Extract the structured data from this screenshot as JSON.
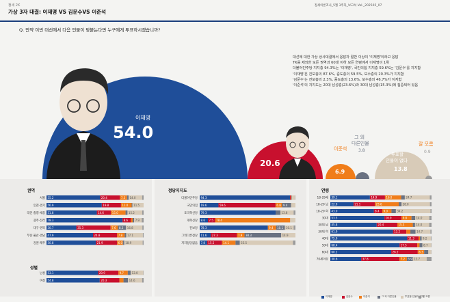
{
  "header": {
    "section_label": "정세 2K",
    "title": "가상 3자 대결: 이재명 VS 김문수VS 이준석",
    "magazine": "정세이론조사_5월 3주차_보고서   Vol._202505_07"
  },
  "question": "Q. 만약 이번 대선에서 다음 인물이 맞붙는다면 누구에게 투표하시겠습니까?",
  "description": [
    "대선에 대한 가상 상사대결에서 응답자 절반 이상이 '이재명'이라고 응답",
    "TK를 제외한 모든 권역과 60대 이하 모든 연령에서 이재명이 1위",
    "더불어민주당 지지층 94.3%는 '이재명', 국민의힘 지지층 59.6%는 '김문수'를 지지함",
    "'이재명'은 진보층의 87.6%, 중도층의 59.5%, 보수층의 20.3%가 지지함",
    "'김문수'는 진보층의 2.3%, 중도층의 13.6%, 보수층의 46.7%가 지지함",
    "'이준석'의 지지도는 20대 남성층(23.6%)과 30대 남성층(15.3%)에 집중되어 있음"
  ],
  "colors": {
    "lee": "#1f4e99",
    "kim": "#c8102e",
    "jun": "#f07d1a",
    "other": "#6a7282",
    "none": "#d8cbb8",
    "dk": "#9a9a9a"
  },
  "chart_data": [
    {
      "type": "bar",
      "title": "가상 3자 대결 전체",
      "categories": [
        "이재명",
        "김문수",
        "이준석",
        "그 외 다른인물",
        "투표할 인물이 없다",
        "잘 모름"
      ],
      "values": [
        54.0,
        20.6,
        6.9,
        3.8,
        13.8,
        0.9
      ],
      "labels": {
        "lee": "54.0",
        "kim": "20.6",
        "jun": "6.9",
        "other": "3.8",
        "none": "13.8",
        "dk": "0.9"
      }
    },
    {
      "type": "bar",
      "stacked": true,
      "title": "권역",
      "categories": [
        "서울",
        "인천·경기",
        "대전·충청·세종",
        "광주·전라",
        "대구·경북",
        "부산·울산·경남",
        "강원·제주"
      ],
      "series": [
        {
          "name": "이재명",
          "values": [
            55.2,
            56.9,
            51.8,
            78.3,
            30.7,
            47.9,
            50.8
          ]
        },
        {
          "name": "김문수",
          "values": [
            20.4,
            19.8,
            14.6,
            8.6,
            35.3,
            24.8,
            21.9
          ]
        },
        {
          "name": "이준석",
          "values": [
            7.3,
            11.0,
            15.0,
            1.8,
            7.6,
            7.8,
            6.0
          ]
        },
        {
          "name": "그 외 다른인물",
          "values": [
            1.6,
            0.8,
            2.0,
            1.5,
            8.3,
            1.6,
            1.4
          ]
        },
        {
          "name": "투표할 인물이 없다",
          "values": [
            14.0,
            11.5,
            15.2,
            7.9,
            16.8,
            17.1,
            18.9
          ]
        },
        {
          "name": "잘 모름",
          "values": [
            1.5,
            0.0,
            1.4,
            1.9,
            1.3,
            0.8,
            1.0
          ]
        }
      ]
    },
    {
      "type": "bar",
      "stacked": true,
      "title": "성별",
      "categories": [
        "남성",
        "여성"
      ],
      "series": [
        {
          "name": "이재명",
          "values": [
            53.1,
            54.8
          ]
        },
        {
          "name": "김문수",
          "values": [
            20.9,
            20.3
          ]
        },
        {
          "name": "이준석",
          "values": [
            9.7,
            4.2
          ]
        },
        {
          "name": "그 외 다른인물",
          "values": [
            3.0,
            4.6
          ]
        },
        {
          "name": "투표할 인물이 없다",
          "values": [
            13.0,
            14.6
          ]
        },
        {
          "name": "잘 모름",
          "values": [
            0.3,
            1.5
          ]
        }
      ]
    },
    {
      "type": "bar",
      "stacked": true,
      "title": "정당지지도",
      "categories": [
        "더불어민주당",
        "국민의힘",
        "조국혁신당",
        "개혁신당",
        "진보당",
        "그외다른정당",
        "지지정당없음"
      ],
      "series": [
        {
          "name": "이재명",
          "values": [
            94.3,
            19.6,
            79.3,
            8.6,
            78.3,
            11.6,
            7.8
          ]
        },
        {
          "name": "김문수",
          "values": [
            0.7,
            59.6,
            0.0,
            7.5,
            0.0,
            27.3,
            15.5
          ]
        },
        {
          "name": "이준석",
          "values": [
            0.6,
            6.8,
            0.0,
            78.4,
            9.4,
            7.9,
            14.1
          ]
        },
        {
          "name": "그 외 다른인물",
          "values": [
            0.5,
            9.4,
            5.0,
            0.0,
            10.1,
            38.3,
            4.5
          ]
        },
        {
          "name": "투표할 인물이 없다",
          "values": [
            3.6,
            4.6,
            13.8,
            5.5,
            10.1,
            14.9,
            55.5
          ]
        },
        {
          "name": "잘 모름",
          "values": [
            0.3,
            0.0,
            1.9,
            0.0,
            2.1,
            0.0,
            2.6
          ]
        }
      ]
    },
    {
      "type": "bar",
      "stacked": true,
      "title": "연령",
      "categories": [
        "18-29세",
        "18-29 남",
        "18-29 여",
        "30대",
        "30대 남",
        "30대 여",
        "40대",
        "50대",
        "60대",
        "70세이상"
      ],
      "series": [
        {
          "name": "이재명",
          "values": [
            39.1,
            22.9,
            43.0,
            53.5,
            45.8,
            61.9,
            75.9,
            68.4,
            60.2,
            30.6
          ]
        },
        {
          "name": "김문수",
          "values": [
            14.9,
            21.1,
            8.4,
            16.9,
            20.4,
            13.2,
            11.3,
            17.5,
            26.2,
            37.8
          ]
        },
        {
          "name": "이준석",
          "values": [
            16.0,
            23.6,
            9.0,
            9.8,
            15.3,
            4.0,
            1.4,
            2.2,
            6.3,
            7.2
          ]
        },
        {
          "name": "그 외 다른인물",
          "values": [
            3.6,
            2.8,
            4.4,
            3.6,
            2.2,
            5.1,
            1.6,
            2.9,
            4.1,
            5.9
          ]
        },
        {
          "name": "투표할 인물이 없다",
          "values": [
            24.7,
            28.0,
            34.2,
            14.0,
            14.0,
            14.7,
            9.2,
            8.7,
            3.0,
            13.7
          ]
        },
        {
          "name": "잘 모름",
          "values": [
            1.7,
            1.6,
            1.0,
            2.2,
            2.3,
            1.1,
            0.6,
            0.3,
            0.2,
            4.8
          ]
        }
      ]
    }
  ],
  "panels": {
    "region": "권역",
    "gender": "성별",
    "party": "정당지지도",
    "age": "연령"
  },
  "legend": [
    "이재명",
    "김문수",
    "이준석",
    "그 외 다른인물",
    "투표할 인물이 없다",
    "잘 모름"
  ]
}
